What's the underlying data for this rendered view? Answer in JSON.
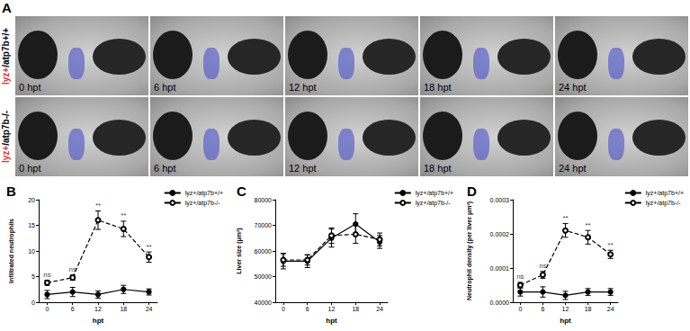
{
  "panel_a": {
    "label": "A",
    "rows": [
      {
        "label": [
          {
            "text": "lyz+",
            "color": "#e8312a"
          },
          {
            "text": "/atp7b+/+",
            "color": "#000000"
          }
        ],
        "times": [
          "0 hpt",
          "6 hpt",
          "12 hpt",
          "18 hpt",
          "24 hpt"
        ]
      },
      {
        "label": [
          {
            "text": "lyz+",
            "color": "#e8312a"
          },
          {
            "text": "/atp7b-/-",
            "color": "#000000"
          }
        ],
        "times": [
          "0 hpt",
          "6 hpt",
          "12 hpt",
          "18 hpt",
          "24 hpt"
        ]
      }
    ]
  },
  "chart_data": [
    {
      "panel": "B",
      "type": "line",
      "y_label": "Infiltrated neutrophils",
      "x_label": "hpt",
      "x": [
        0,
        6,
        12,
        18,
        24
      ],
      "xlim": [
        -2,
        26
      ],
      "xticks": [
        0,
        6,
        12,
        18,
        24
      ],
      "ylim": [
        0,
        20
      ],
      "yticks": [
        0,
        5,
        10,
        15,
        20
      ],
      "grid": false,
      "legend": "upper right",
      "series": [
        {
          "name": "lyz+/atp7b+/+",
          "color": "#000000",
          "marker": "circle",
          "line_style": "solid",
          "values": [
            1.5,
            2,
            1.5,
            2.5,
            2
          ],
          "errors": [
            0.8,
            0.9,
            0.7,
            0.8,
            0.6
          ]
        },
        {
          "name": "lyz+/atp7b-/-",
          "color": "#000000",
          "marker": "open circle",
          "line_style": "dashed",
          "values": [
            3.8,
            4.8,
            16,
            14.3,
            8.8
          ],
          "errors": [
            0.5,
            0.5,
            1.8,
            1.5,
            1.0
          ]
        }
      ],
      "annotations": [
        {
          "x": 0,
          "text": "ns"
        },
        {
          "x": 6,
          "text": "ns"
        },
        {
          "x": 12,
          "text": "**"
        },
        {
          "x": 18,
          "text": "**"
        },
        {
          "x": 24,
          "text": "**"
        }
      ]
    },
    {
      "panel": "C",
      "type": "line",
      "y_label": "Liver size (μm²)",
      "x_label": "hpt",
      "x": [
        0,
        6,
        12,
        18,
        24
      ],
      "xlim": [
        -2,
        26
      ],
      "xticks": [
        0,
        6,
        12,
        18,
        24
      ],
      "ylim": [
        40000,
        80000
      ],
      "yticks": [
        40000,
        50000,
        60000,
        70000,
        80000
      ],
      "grid": false,
      "legend": "upper right",
      "series": [
        {
          "name": "lyz+/atp7b+/+",
          "color": "#000000",
          "marker": "circle",
          "line_style": "solid",
          "values": [
            56000,
            56000,
            65000,
            70500,
            63500
          ],
          "errors": [
            3000,
            2500,
            3500,
            4000,
            2500
          ]
        },
        {
          "name": "lyz+/atp7b-/-",
          "color": "#000000",
          "marker": "open circle",
          "line_style": "dashed",
          "values": [
            56500,
            56500,
            66000,
            66500,
            64500
          ],
          "errors": [
            2500,
            2000,
            3000,
            3500,
            2500
          ]
        }
      ],
      "annotations": []
    },
    {
      "panel": "D",
      "type": "line",
      "y_label": "Neutrophil density (per liver μm²)",
      "x_label": "hpt",
      "x": [
        0,
        6,
        12,
        18,
        24
      ],
      "xlim": [
        -2,
        26
      ],
      "xticks": [
        0,
        6,
        12,
        18,
        24
      ],
      "ylim": [
        0,
        0.0003
      ],
      "yticks": [
        {
          "value": 0,
          "label": "0.0000"
        },
        0.0001,
        0.0002,
        0.0003
      ],
      "grid": false,
      "legend": "upper right",
      "series": [
        {
          "name": "lyz+/atp7b+/+",
          "color": "#000000",
          "marker": "circle",
          "line_style": "solid",
          "values": [
            3e-05,
            3e-05,
            2e-05,
            3e-05,
            3e-05
          ],
          "errors": [
            1.2e-05,
            1.5e-05,
            1.2e-05,
            1e-05,
            1e-05
          ]
        },
        {
          "name": "lyz+/atp7b-/-",
          "color": "#000000",
          "marker": "open circle",
          "line_style": "dashed",
          "values": [
            5e-05,
            8e-05,
            0.00021,
            0.00019,
            0.00014
          ],
          "errors": [
            8e-06,
            1e-05,
            2e-05,
            2e-05,
            1.2e-05
          ]
        }
      ],
      "annotations": [
        {
          "x": 0,
          "text": "ns"
        },
        {
          "x": 6,
          "text": "ns"
        },
        {
          "x": 12,
          "text": "**"
        },
        {
          "x": 18,
          "text": "**"
        },
        {
          "x": 24,
          "text": "**"
        }
      ]
    }
  ]
}
